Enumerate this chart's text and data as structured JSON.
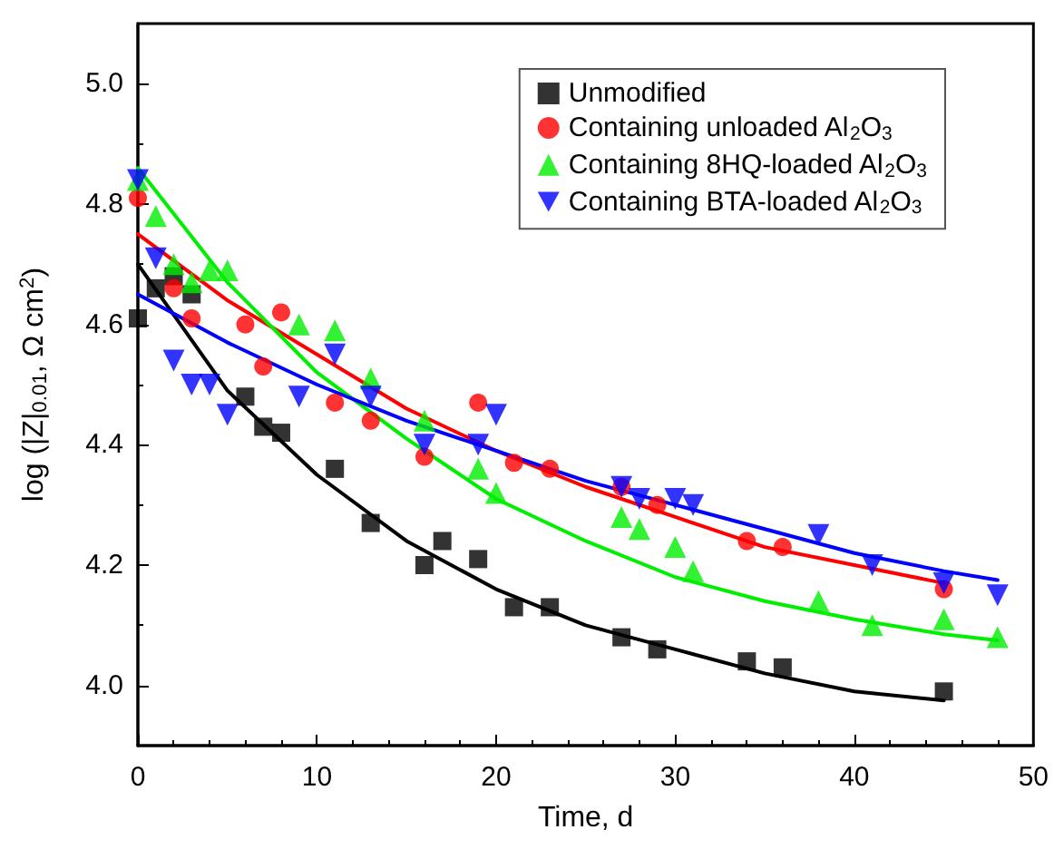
{
  "chart_data": {
    "type": "scatter",
    "xlabel": "Time, d",
    "ylabel": "log (|Z|$_{0.01}$, Ω cm$^{2}$)",
    "xlim": [
      0,
      50
    ],
    "xticks": [
      0,
      10,
      20,
      30,
      40,
      50
    ],
    "ylim": [
      3.9,
      5.1
    ],
    "yticks": [
      {
        "value": 4,
        "label": "4.0"
      },
      4.2,
      4.4,
      4.6,
      4.8,
      {
        "value": 5,
        "label": "5.0"
      }
    ],
    "grid": false,
    "legend": "top right",
    "series": [
      {
        "name": "Unmodified",
        "color": "#000000",
        "marker": "square",
        "x": [
          0,
          1,
          2,
          3,
          6,
          7,
          8,
          11,
          13,
          16,
          17,
          19,
          21,
          23,
          27,
          29,
          34,
          36,
          45
        ],
        "values": [
          4.61,
          4.66,
          4.68,
          4.65,
          4.48,
          4.43,
          4.42,
          4.36,
          4.27,
          4.2,
          4.24,
          4.21,
          4.13,
          4.13,
          4.08,
          4.06,
          4.04,
          4.03,
          3.99
        ]
      },
      {
        "name": "Containing unloaded Al$_{2}$O$_{3}$",
        "color": "#ff0000",
        "marker": "circle",
        "x": [
          0,
          2,
          3,
          6,
          7,
          8,
          11,
          13,
          16,
          19,
          21,
          23,
          27,
          29,
          34,
          36,
          45
        ],
        "values": [
          4.81,
          4.66,
          4.61,
          4.6,
          4.53,
          4.62,
          4.47,
          4.44,
          4.38,
          4.47,
          4.37,
          4.36,
          4.33,
          4.3,
          4.24,
          4.23,
          4.16
        ]
      },
      {
        "name": "Containing 8HQ-loaded Al$_{2}$O$_{3}$",
        "color": "#00ee00",
        "marker": "triangle",
        "x": [
          0,
          1,
          2,
          3,
          4,
          5,
          9,
          11,
          13,
          16,
          19,
          20,
          27,
          28,
          30,
          31,
          38,
          41,
          45,
          48
        ],
        "values": [
          4.84,
          4.78,
          4.7,
          4.67,
          4.69,
          4.69,
          4.6,
          4.59,
          4.51,
          4.44,
          4.36,
          4.32,
          4.28,
          4.26,
          4.23,
          4.19,
          4.14,
          4.1,
          4.11,
          4.08
        ]
      },
      {
        "name": "Containing BTA-loaded Al$_{2}$O$_{3}$",
        "color": "#0000ff",
        "marker": "triangle-down",
        "x": [
          0,
          1,
          2,
          3,
          4,
          5,
          9,
          11,
          13,
          16,
          19,
          20,
          27,
          28,
          30,
          31,
          38,
          41,
          45,
          48
        ],
        "values": [
          4.84,
          4.71,
          4.54,
          4.5,
          4.5,
          4.45,
          4.48,
          4.55,
          4.48,
          4.4,
          4.4,
          4.45,
          4.33,
          4.31,
          4.31,
          4.3,
          4.25,
          4.2,
          4.17,
          4.15
        ]
      },
      {
        "type": "line",
        "color": "#000000",
        "x": [
          0,
          5,
          10,
          15,
          20,
          25,
          30,
          35,
          40,
          45
        ],
        "values": [
          4.7,
          4.49,
          4.35,
          4.24,
          4.16,
          4.1,
          4.06,
          4.02,
          3.99,
          3.975
        ]
      },
      {
        "type": "line",
        "color": "#ff0000",
        "x": [
          0,
          5,
          10,
          15,
          20,
          25,
          30,
          35,
          40,
          45
        ],
        "values": [
          4.75,
          4.64,
          4.55,
          4.46,
          4.39,
          4.33,
          4.28,
          4.23,
          4.2,
          4.17
        ]
      },
      {
        "type": "line",
        "color": "#00ee00",
        "x": [
          0,
          5,
          10,
          15,
          20,
          25,
          30,
          35,
          40,
          45,
          48
        ],
        "values": [
          4.86,
          4.67,
          4.52,
          4.41,
          4.31,
          4.24,
          4.18,
          4.14,
          4.11,
          4.085,
          4.075
        ]
      },
      {
        "type": "line",
        "color": "#0000ff",
        "x": [
          0,
          5,
          10,
          15,
          20,
          25,
          30,
          35,
          40,
          45,
          48
        ],
        "values": [
          4.65,
          4.57,
          4.5,
          4.44,
          4.39,
          4.34,
          4.3,
          4.26,
          4.22,
          4.19,
          4.175
        ]
      }
    ]
  }
}
